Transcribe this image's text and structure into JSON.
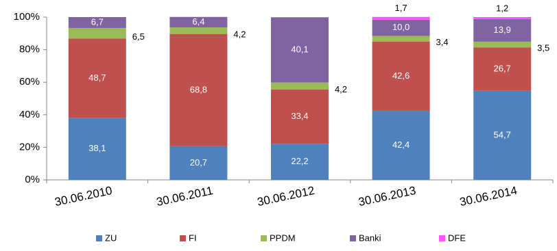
{
  "chart_data": {
    "type": "stacked_bar",
    "categories": [
      "30.06.2010",
      "30.06.2011",
      "30.06.2012",
      "30.06.2013",
      "30.06.2014"
    ],
    "series": [
      {
        "name": "ZU",
        "color": "#4f81bd",
        "values": [
          38.1,
          20.7,
          22.2,
          42.4,
          54.7
        ],
        "value_labels": [
          "38,1",
          "20,7",
          "22,2",
          "42,4",
          "54,7"
        ]
      },
      {
        "name": "FI",
        "color": "#c0504d",
        "values": [
          48.7,
          68.8,
          33.4,
          42.6,
          26.7
        ],
        "value_labels": [
          "48,7",
          "68,8",
          "33,4",
          "42,6",
          "26,7"
        ]
      },
      {
        "name": "PPDM",
        "color": "#9bbb59",
        "values": [
          6.5,
          4.2,
          4.2,
          3.4,
          3.5
        ],
        "value_labels": [
          "6,5",
          "4,2",
          "4,2",
          "3,4",
          "3,5"
        ]
      },
      {
        "name": "Banki",
        "color": "#8064a2",
        "values": [
          6.7,
          6.4,
          40.1,
          10.0,
          13.9
        ],
        "value_labels": [
          "6,7",
          "6,4",
          "40,1",
          "10,0",
          "13,9"
        ]
      },
      {
        "name": "DFE",
        "color": "#ff55ff",
        "values": [
          null,
          null,
          null,
          1.7,
          1.2
        ],
        "value_labels": [
          null,
          null,
          null,
          "1,7",
          "1,2"
        ]
      }
    ],
    "ylim": [
      0,
      100
    ],
    "yticks": [
      {
        "value": 0,
        "label": "0%"
      },
      {
        "value": 20,
        "label": "20%"
      },
      {
        "value": 40,
        "label": "40%"
      },
      {
        "value": 60,
        "label": "60%"
      },
      {
        "value": 80,
        "label": "80%"
      },
      {
        "value": 100,
        "label": "100%"
      }
    ],
    "grid": false
  }
}
